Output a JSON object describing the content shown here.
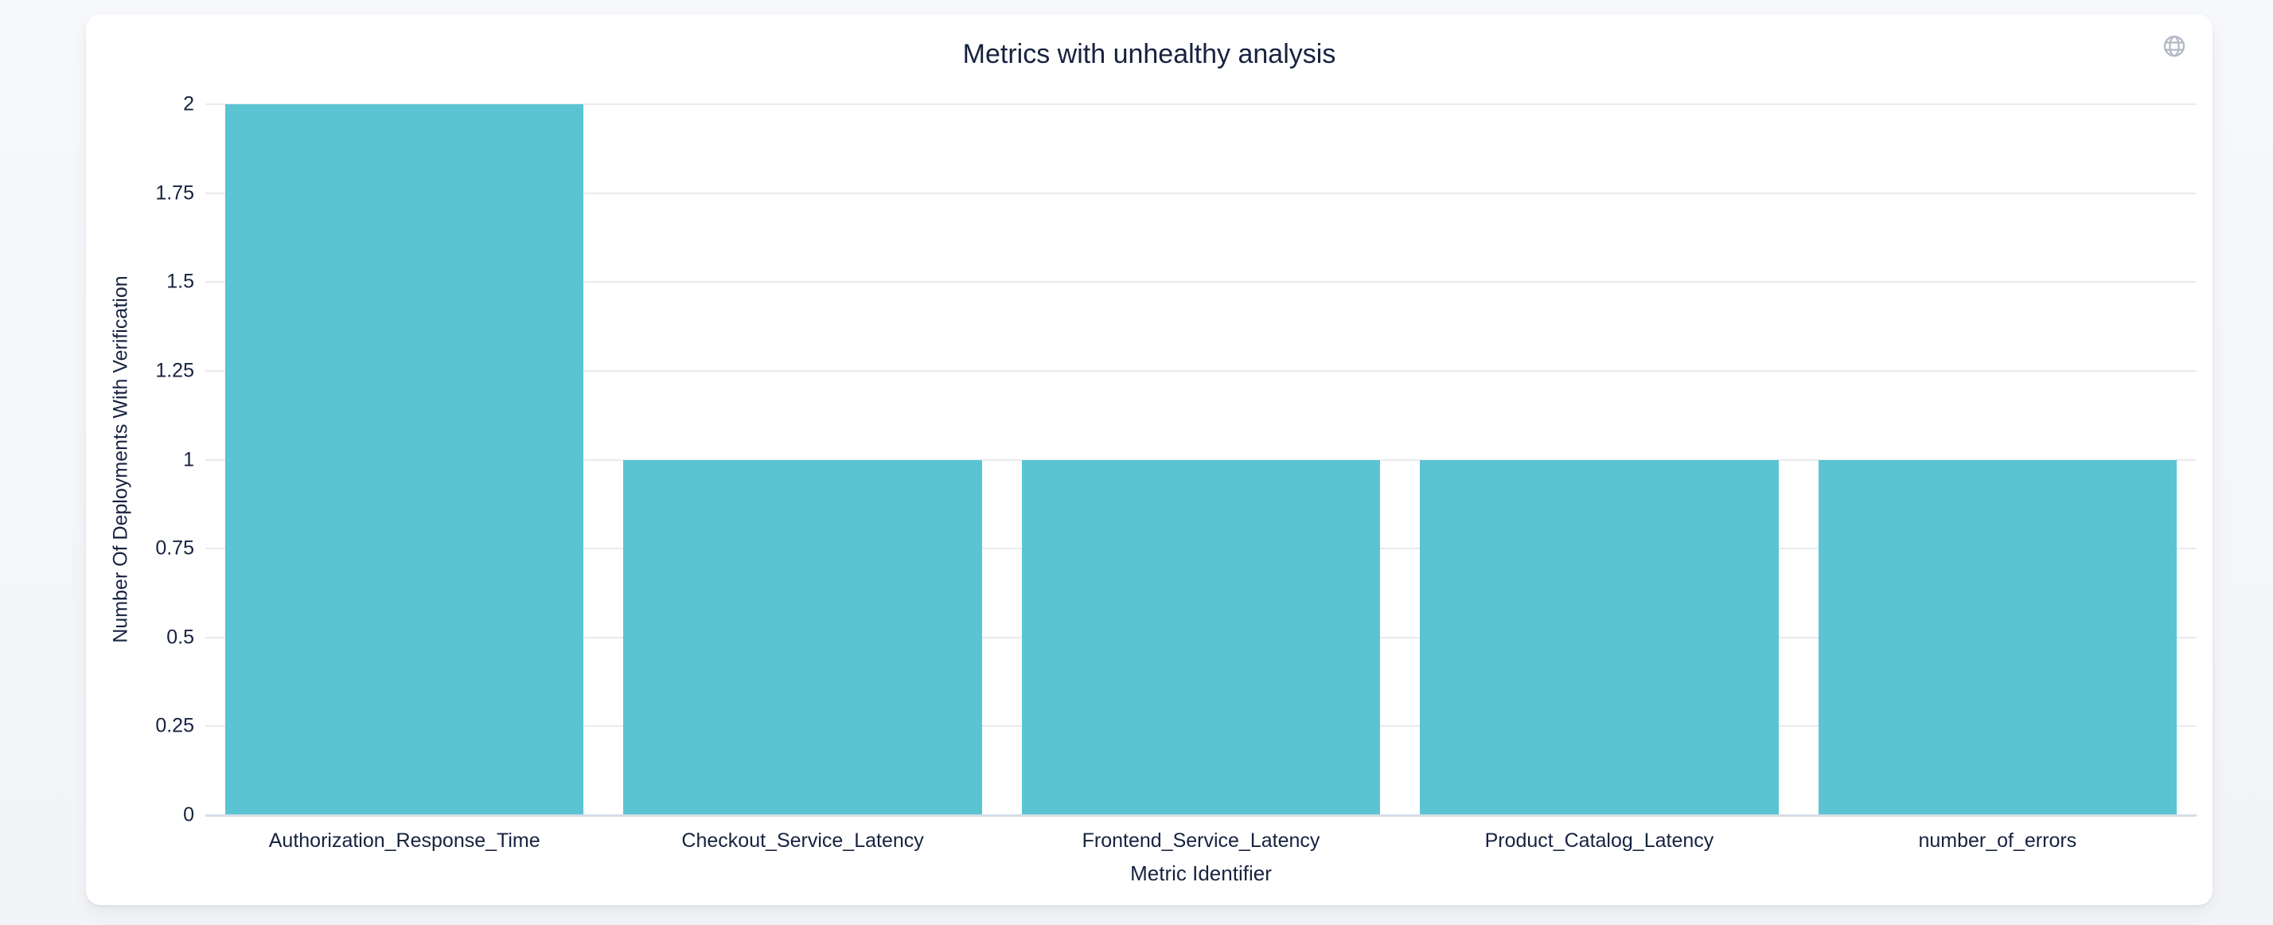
{
  "header": {
    "title": "Metrics with unhealthy analysis",
    "globe_icon": "globe-icon"
  },
  "colors": {
    "bar": "#5BC4D2",
    "text": "#16223F",
    "gridline": "#E9EAEE",
    "axis_line": "#D7DDE9",
    "icon": "#B4BAC6",
    "card_background": "#FFFFFF",
    "page_background": "#F4F6F9"
  },
  "chart_data": {
    "type": "bar",
    "title": "Metrics with unhealthy analysis",
    "categories": [
      "Authorization_Response_Time",
      "Checkout_Service_Latency",
      "Frontend_Service_Latency",
      "Product_Catalog_Latency",
      "number_of_errors"
    ],
    "values": [
      2,
      1,
      1,
      1,
      1
    ],
    "xlabel": "Metric Identifier",
    "ylabel": "Number Of Deployments With Verification",
    "ylim": [
      0,
      2
    ],
    "yticks": [
      0,
      0.25,
      0.5,
      0.75,
      1,
      1.25,
      1.5,
      1.75,
      2
    ],
    "grid": true,
    "legend": false,
    "bar_color": "#5BC4D2"
  }
}
